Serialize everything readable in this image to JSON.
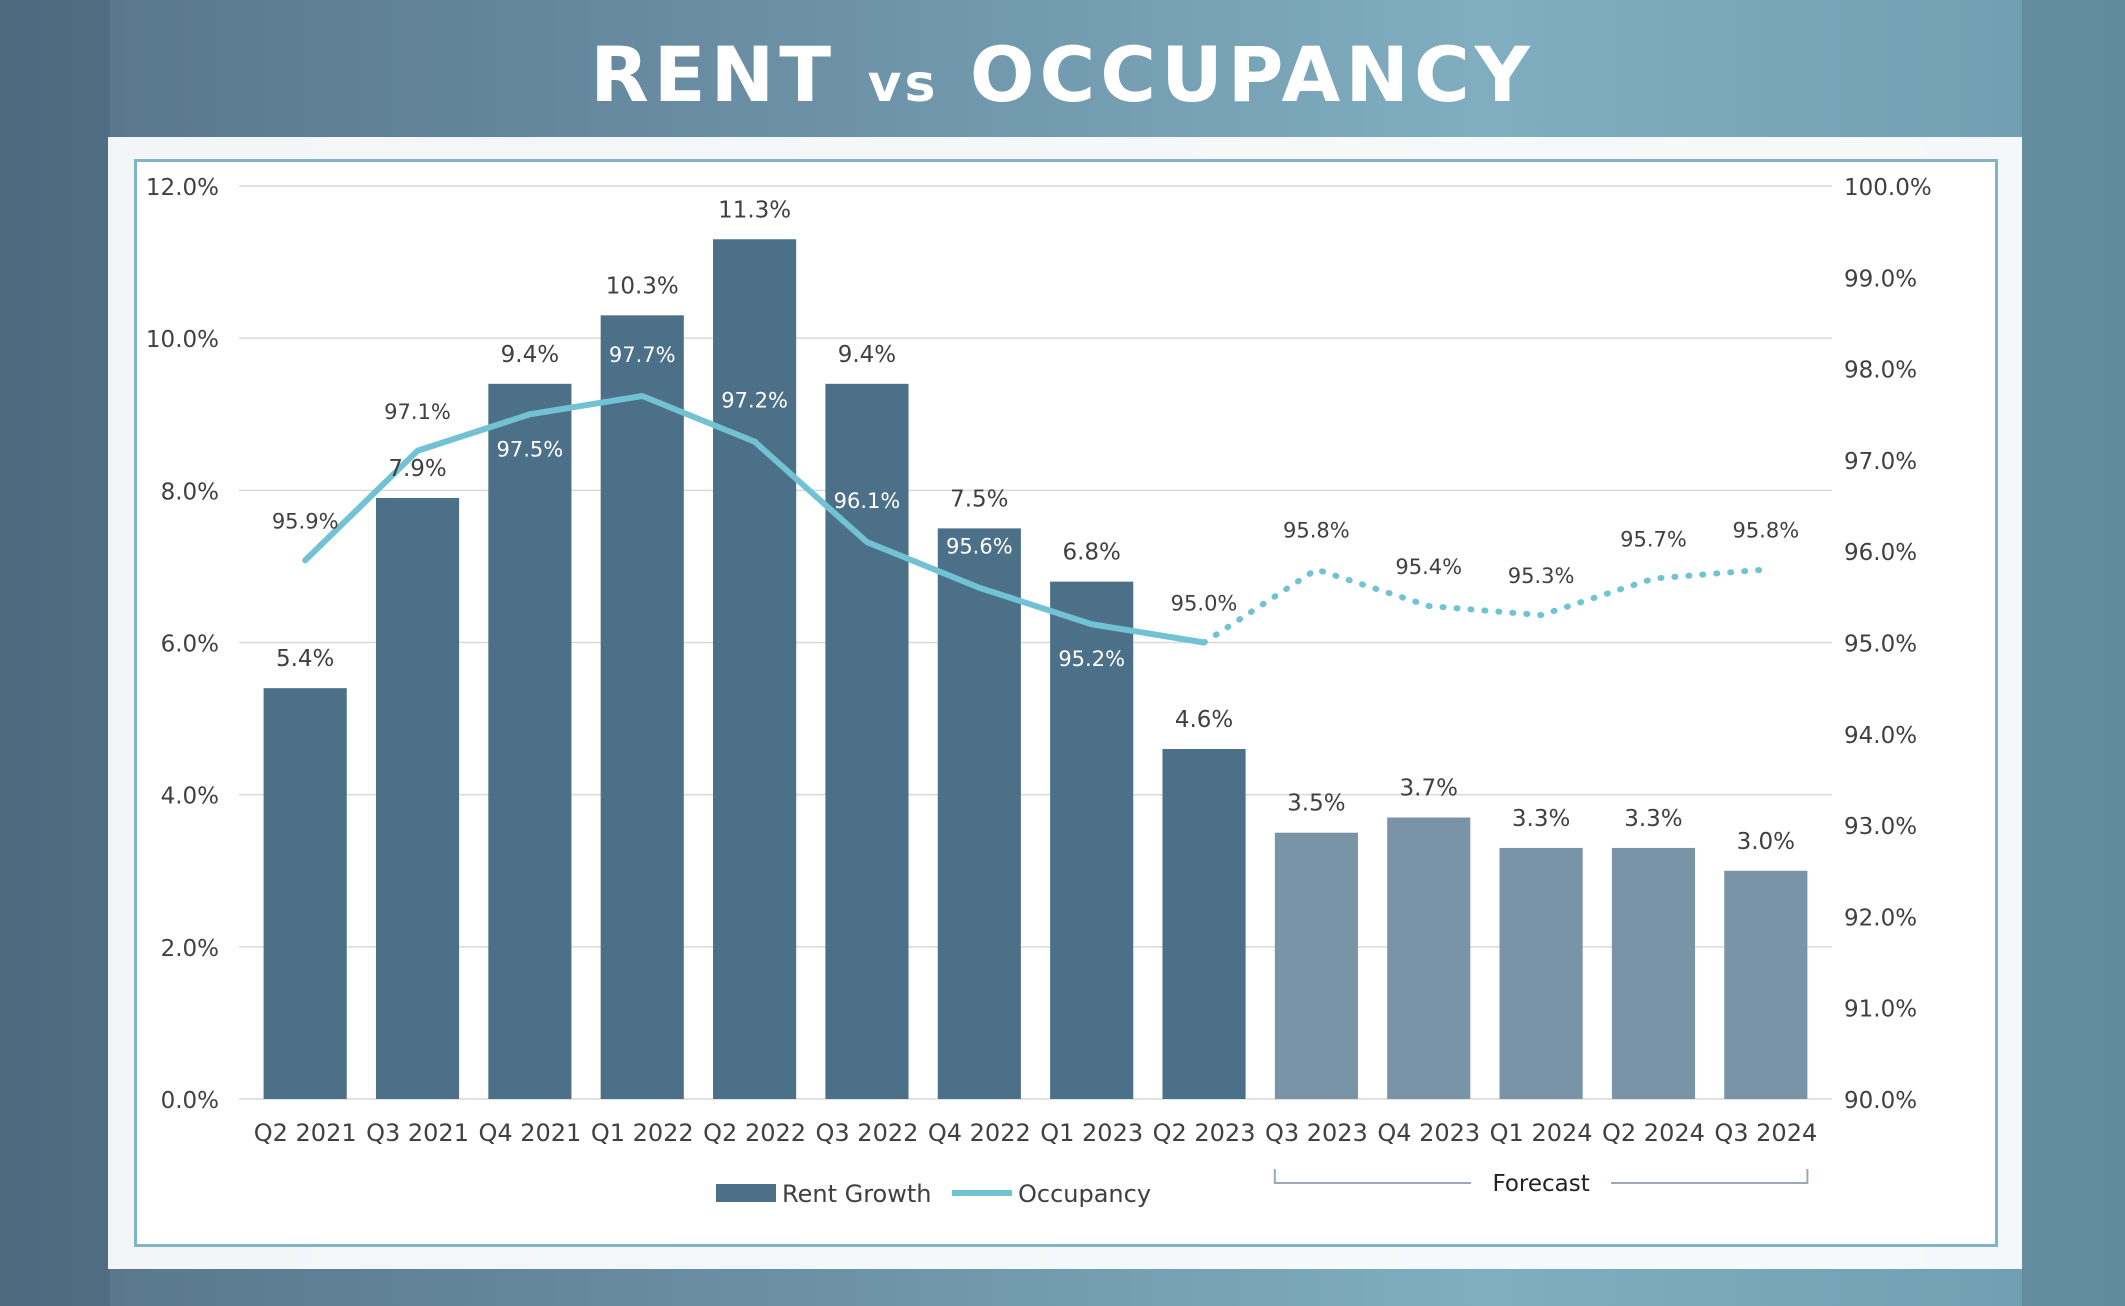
{
  "title_main": "RENT",
  "title_vs": "vs",
  "title_second": "OCCUPANCY",
  "chart_data": {
    "type": "bar",
    "categories": [
      "Q2 2021",
      "Q3 2021",
      "Q4 2021",
      "Q1 2022",
      "Q2 2022",
      "Q3 2022",
      "Q4 2022",
      "Q1 2023",
      "Q2 2023",
      "Q3 2023",
      "Q4 2023",
      "Q1 2024",
      "Q2 2024",
      "Q3 2024"
    ],
    "series": [
      {
        "name": "Rent Growth",
        "type": "bar",
        "axis": "left",
        "values": [
          5.4,
          7.9,
          9.4,
          10.3,
          11.3,
          9.4,
          7.5,
          6.8,
          4.6,
          3.5,
          3.7,
          3.3,
          3.3,
          3.0
        ],
        "labels": [
          "5.4%",
          "7.9%",
          "9.4%",
          "10.3%",
          "11.3%",
          "9.4%",
          "7.5%",
          "6.8%",
          "4.6%",
          "3.5%",
          "3.7%",
          "3.3%",
          "3.3%",
          "3.0%"
        ]
      },
      {
        "name": "Occupancy",
        "type": "line",
        "axis": "right",
        "values": [
          95.9,
          97.1,
          97.5,
          97.7,
          97.2,
          96.1,
          95.6,
          95.2,
          95.0,
          95.8,
          95.4,
          95.3,
          95.7,
          95.8
        ],
        "labels": [
          "95.9%",
          "97.1%",
          "97.5%",
          "97.7%",
          "97.2%",
          "96.1%",
          "95.6%",
          "95.2%",
          "95.0%",
          "95.8%",
          "95.4%",
          "95.3%",
          "95.7%",
          "95.8%"
        ]
      }
    ],
    "forecast_start_index": 9,
    "forecast_label": "Forecast",
    "y_left": {
      "min": 0,
      "max": 12,
      "step": 2,
      "ticks": [
        "0.0%",
        "2.0%",
        "4.0%",
        "6.0%",
        "8.0%",
        "10.0%",
        "12.0%"
      ]
    },
    "y_right": {
      "min": 90,
      "max": 100,
      "step": 1,
      "ticks": [
        "90.0%",
        "91.0%",
        "92.0%",
        "93.0%",
        "94.0%",
        "95.0%",
        "96.0%",
        "97.0%",
        "98.0%",
        "99.0%",
        "100.0%"
      ]
    },
    "legend": [
      {
        "name": "Rent Growth",
        "marker": "bar"
      },
      {
        "name": "Occupancy",
        "marker": "line"
      }
    ],
    "legend_position": "bottom",
    "grid": true,
    "colors": {
      "bar": "#4d7089",
      "bar_forecast": "#7a94a7",
      "line": "#71c2d3",
      "grid": "#d9d9d9",
      "text": "#404040"
    }
  }
}
